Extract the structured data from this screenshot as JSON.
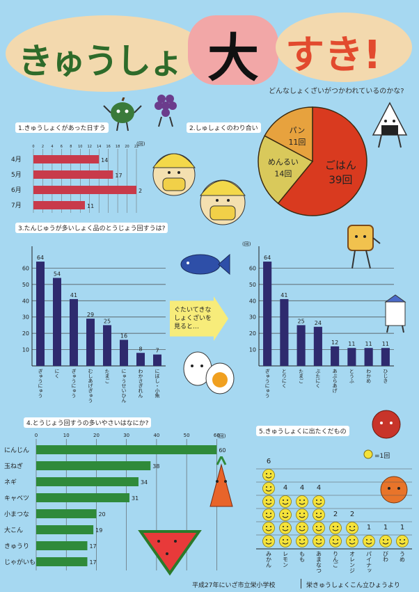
{
  "title": {
    "part1": "きゅうしょく",
    "part2": "大",
    "part3": "すき!",
    "question": "どんなしょくざいがつかわれているのかな?"
  },
  "section1": {
    "heading": "1.きゅうしょくがあった日すう",
    "unit": "(回)",
    "chart_data": {
      "type": "bar",
      "categories": [
        "4月",
        "5月",
        "6月",
        "7月"
      ],
      "values": [
        14,
        17,
        22,
        11
      ],
      "xticks": [
        "0",
        "2",
        "4",
        "6",
        "8",
        "10",
        "12",
        "14",
        "16",
        "18",
        "20",
        "22"
      ],
      "xlim": [
        0,
        22
      ]
    }
  },
  "section2": {
    "heading": "2.しゅしょくのわり合い",
    "chart_data": {
      "type": "pie",
      "slices": [
        {
          "label": "ごはん",
          "value": 39,
          "display": "39回"
        },
        {
          "label": "めんるい",
          "value": 14,
          "display": "14回"
        },
        {
          "label": "パン",
          "value": 11,
          "display": "11回"
        }
      ],
      "colors": {
        "rice": "#d93a1f",
        "noodle": "#d9c95b",
        "bread": "#e7a23e"
      }
    }
  },
  "section3": {
    "heading": "3.たんじゅうが多いしょく品のとうじょう回すうは?",
    "callout": "ぐたいてきな しょくざいを 見ると…",
    "left_chart": {
      "chart_data": {
        "type": "bar",
        "categories": [
          "ぎゅうにゅう",
          "にく",
          "ぎゅうにゅう",
          "むしあげぎゅう",
          "たまご",
          "にゅうせいひん",
          "わかさぎれん",
          "にぼし・小魚"
        ],
        "values": [
          64,
          54,
          41,
          29,
          25,
          16,
          8,
          7
        ],
        "yticks": [
          "10",
          "20",
          "30",
          "40",
          "50",
          "60"
        ],
        "ylim": [
          0,
          70
        ]
      }
    },
    "right_chart": {
      "unit": "(回)",
      "chart_data": {
        "type": "bar",
        "categories": [
          "ぎゅうにゅう",
          "とりにく",
          "たまご",
          "ぶたにく",
          "あぶらあげ",
          "とうふ",
          "わかめ",
          "ひじき"
        ],
        "values": [
          64,
          41,
          25,
          24,
          12,
          11,
          11,
          11
        ],
        "yticks": [
          "10",
          "20",
          "30",
          "40",
          "50",
          "60"
        ],
        "ylim": [
          0,
          70
        ]
      }
    }
  },
  "section4": {
    "heading": "4.とうじょう回すうの多いやさいはなにか?",
    "unit": "(回)",
    "chart_data": {
      "type": "bar",
      "categories": [
        "にんじん",
        "玉ねぎ",
        "ネギ",
        "キャベツ",
        "小まつな",
        "大こん",
        "きゅうり",
        "じゃがいも"
      ],
      "values": [
        60,
        38,
        34,
        31,
        20,
        19,
        17,
        17
      ],
      "xticks": [
        "0",
        "10",
        "20",
        "30",
        "40",
        "50",
        "60"
      ],
      "xlim": [
        0,
        62
      ]
    }
  },
  "section5": {
    "heading": "5.きゅうしょくに出たくだもの",
    "legend": "=1回",
    "chart_data": {
      "type": "bar",
      "categories": [
        "みかん",
        "レモン",
        "もも",
        "あまなつ",
        "りんご",
        "オレンジ",
        "パイナップル",
        "びわ",
        "うめ"
      ],
      "values": [
        6,
        4,
        4,
        4,
        2,
        2,
        1,
        1,
        1
      ]
    }
  },
  "footer": {
    "left": "平成27年にいざ市立栄小学校",
    "right": "栄きゅうしょくこん立ひょうより"
  },
  "colors": {
    "background": "#a6d8f1",
    "bar_red": "#c83a4a",
    "bar_navy": "#2e2a6e",
    "bar_green": "#2f8a3a",
    "smile": "#f4e23a"
  }
}
